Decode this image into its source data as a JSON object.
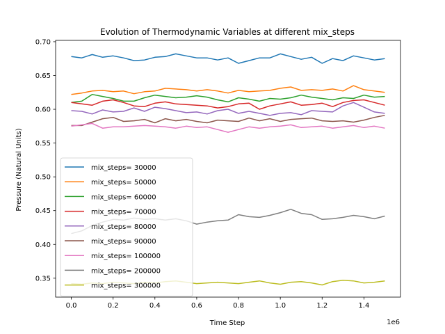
{
  "chart_data": {
    "type": "line",
    "title": "Evolution of Thermodynamic Variables at different mix_steps",
    "xlabel": "Time Step",
    "ylabel": "Pressure (Natural Units)",
    "x_offset_label": "1e6",
    "xlim": [
      -0.075,
      1.575
    ],
    "ylim": [
      0.322,
      0.702
    ],
    "x_ticks": [
      0.0,
      0.2,
      0.4,
      0.6,
      0.8,
      1.0,
      1.2,
      1.4
    ],
    "x_tick_labels": [
      "0.0",
      "0.2",
      "0.4",
      "0.6",
      "0.8",
      "1.0",
      "1.2",
      "1.4"
    ],
    "y_ticks": [
      0.35,
      0.4,
      0.45,
      0.5,
      0.55,
      0.6,
      0.65,
      0.7
    ],
    "y_tick_labels": [
      "0.35",
      "0.40",
      "0.45",
      "0.50",
      "0.55",
      "0.60",
      "0.65",
      "0.70"
    ],
    "grid": false,
    "legend_position": "lower-left",
    "x": [
      0.0,
      0.05,
      0.1,
      0.15,
      0.2,
      0.25,
      0.3,
      0.35,
      0.4,
      0.45,
      0.5,
      0.55,
      0.6,
      0.65,
      0.7,
      0.75,
      0.8,
      0.85,
      0.9,
      0.95,
      1.0,
      1.05,
      1.1,
      1.15,
      1.2,
      1.25,
      1.3,
      1.35,
      1.4,
      1.45,
      1.5
    ],
    "series": [
      {
        "name": "mix_steps= 30000",
        "color": "#1f77b4",
        "values": [
          0.678,
          0.676,
          0.681,
          0.677,
          0.679,
          0.676,
          0.672,
          0.673,
          0.677,
          0.678,
          0.682,
          0.679,
          0.676,
          0.676,
          0.673,
          0.676,
          0.668,
          0.672,
          0.676,
          0.676,
          0.682,
          0.678,
          0.674,
          0.677,
          0.668,
          0.675,
          0.672,
          0.679,
          0.676,
          0.673,
          0.675
        ]
      },
      {
        "name": "mix_steps= 50000",
        "color": "#ff7f0e",
        "values": [
          0.622,
          0.624,
          0.627,
          0.628,
          0.626,
          0.627,
          0.623,
          0.626,
          0.627,
          0.631,
          0.63,
          0.629,
          0.627,
          0.629,
          0.627,
          0.624,
          0.628,
          0.626,
          0.627,
          0.628,
          0.631,
          0.633,
          0.628,
          0.629,
          0.628,
          0.63,
          0.627,
          0.635,
          0.629,
          0.627,
          0.625
        ]
      },
      {
        "name": "mix_steps= 60000",
        "color": "#2ca02c",
        "values": [
          0.61,
          0.612,
          0.622,
          0.619,
          0.616,
          0.612,
          0.612,
          0.617,
          0.621,
          0.619,
          0.617,
          0.618,
          0.62,
          0.618,
          0.614,
          0.611,
          0.617,
          0.615,
          0.612,
          0.616,
          0.615,
          0.617,
          0.621,
          0.618,
          0.616,
          0.614,
          0.617,
          0.616,
          0.621,
          0.618,
          0.619
        ]
      },
      {
        "name": "mix_steps= 70000",
        "color": "#d62728",
        "values": [
          0.61,
          0.608,
          0.606,
          0.612,
          0.614,
          0.61,
          0.605,
          0.604,
          0.609,
          0.611,
          0.608,
          0.607,
          0.606,
          0.605,
          0.602,
          0.604,
          0.608,
          0.609,
          0.6,
          0.605,
          0.608,
          0.611,
          0.606,
          0.607,
          0.609,
          0.604,
          0.61,
          0.613,
          0.614,
          0.61,
          0.606
        ]
      },
      {
        "name": "mix_steps= 80000",
        "color": "#9467bd",
        "values": [
          0.598,
          0.597,
          0.593,
          0.599,
          0.596,
          0.597,
          0.602,
          0.597,
          0.603,
          0.601,
          0.598,
          0.595,
          0.596,
          0.593,
          0.598,
          0.6,
          0.594,
          0.597,
          0.594,
          0.591,
          0.594,
          0.595,
          0.592,
          0.598,
          0.597,
          0.596,
          0.605,
          0.61,
          0.603,
          0.596,
          0.594
        ]
      },
      {
        "name": "mix_steps= 90000",
        "color": "#8c564b",
        "values": [
          0.576,
          0.576,
          0.581,
          0.586,
          0.588,
          0.582,
          0.583,
          0.585,
          0.58,
          0.586,
          0.583,
          0.585,
          0.582,
          0.58,
          0.584,
          0.583,
          0.582,
          0.587,
          0.583,
          0.586,
          0.582,
          0.585,
          0.586,
          0.587,
          0.583,
          0.582,
          0.583,
          0.581,
          0.584,
          0.588,
          0.591
        ]
      },
      {
        "name": "mix_steps= 100000",
        "color": "#e377c2",
        "values": [
          0.575,
          0.577,
          0.579,
          0.572,
          0.574,
          0.574,
          0.575,
          0.576,
          0.575,
          0.574,
          0.572,
          0.575,
          0.573,
          0.574,
          0.57,
          0.566,
          0.57,
          0.574,
          0.572,
          0.574,
          0.575,
          0.577,
          0.573,
          0.574,
          0.575,
          0.572,
          0.574,
          0.576,
          0.573,
          0.575,
          0.572
        ]
      },
      {
        "name": "mix_steps= 200000",
        "color": "#7f7f7f",
        "values": [
          0.416,
          0.42,
          0.428,
          0.433,
          0.437,
          0.436,
          0.439,
          0.437,
          0.438,
          0.436,
          0.438,
          0.435,
          0.43,
          0.433,
          0.435,
          0.436,
          0.444,
          0.441,
          0.44,
          0.443,
          0.447,
          0.452,
          0.446,
          0.444,
          0.437,
          0.438,
          0.44,
          0.443,
          0.441,
          0.438,
          0.442
        ]
      },
      {
        "name": "mix_steps= 300000",
        "color": "#bcbd22",
        "values": [
          0.342,
          0.341,
          0.343,
          0.342,
          0.344,
          0.343,
          0.342,
          0.344,
          0.343,
          0.345,
          0.346,
          0.344,
          0.342,
          0.343,
          0.344,
          0.343,
          0.342,
          0.344,
          0.346,
          0.343,
          0.341,
          0.344,
          0.345,
          0.343,
          0.34,
          0.345,
          0.347,
          0.346,
          0.343,
          0.344,
          0.346
        ]
      }
    ]
  }
}
